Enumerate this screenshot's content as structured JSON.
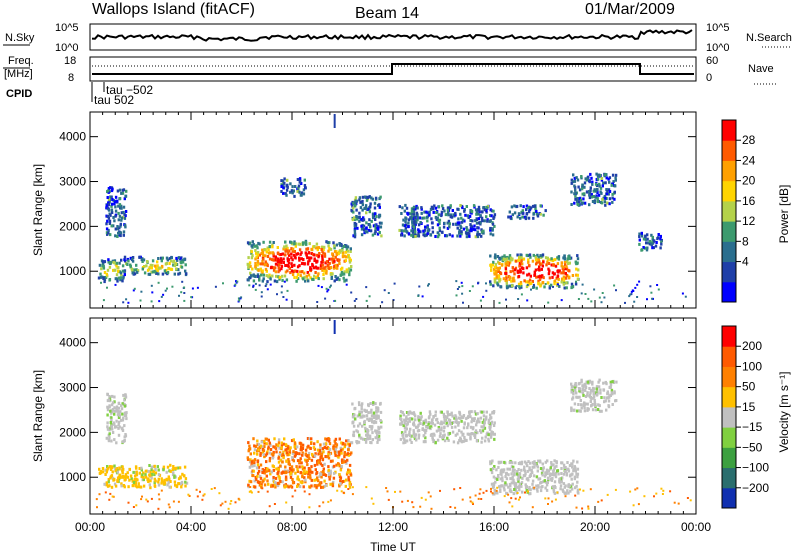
{
  "header": {
    "station": "Wallops Island (fitACF)",
    "beam": "Beam 14",
    "date": "01/Mar/2009"
  },
  "summary_panels": {
    "nsky_label": "N.Sky",
    "nsky_ticks": [
      "10^5",
      "10^0"
    ],
    "nsearch_label": "N.Search",
    "nsearch_ticks": [
      "10^5",
      "10^0"
    ],
    "freq_label": "Freq.",
    "freq_unit": "[MHz]",
    "freq_ticks": [
      "18",
      "8"
    ],
    "nave_label": "Nave",
    "nave_ticks": [
      "60",
      "0"
    ],
    "cpid_label": "CPID",
    "cpid_annotations": [
      "tau −502",
      "tau 502"
    ]
  },
  "chart_data": [
    {
      "type": "heatmap",
      "title": "",
      "ylabel": "Slant Range [km]",
      "xlabel": "",
      "x_range_hours": [
        0,
        24
      ],
      "ylim": [
        180,
        4550
      ],
      "yticks": [
        "4000",
        "3000",
        "2000",
        "1000"
      ],
      "colorbar": {
        "label": "Power [dB]",
        "ticks": [
          "28",
          "24",
          "20",
          "16",
          "12",
          "8",
          "4"
        ],
        "colors": [
          "#0000ff",
          "#1f3fa8",
          "#2a6e8e",
          "#3c9a6e",
          "#b4d24a",
          "#ffd400",
          "#ffa000",
          "#ff5a00",
          "#ff0000"
        ]
      },
      "regions": [
        {
          "t": [
            0.6,
            1.4
          ],
          "r": [
            1800,
            2900
          ],
          "level": "low"
        },
        {
          "t": [
            0.3,
            1.3
          ],
          "r": [
            800,
            1300
          ],
          "level": "mid"
        },
        {
          "t": [
            1.3,
            3.8
          ],
          "r": [
            950,
            1350
          ],
          "level": "mid"
        },
        {
          "t": [
            6.2,
            10.3
          ],
          "r": [
            800,
            1700
          ],
          "level": "high"
        },
        {
          "t": [
            7.5,
            8.5
          ],
          "r": [
            2700,
            3100
          ],
          "level": "low"
        },
        {
          "t": [
            10.3,
            11.5
          ],
          "r": [
            1800,
            2700
          ],
          "level": "low"
        },
        {
          "t": [
            12.2,
            16.0
          ],
          "r": [
            1800,
            2500
          ],
          "level": "low"
        },
        {
          "t": [
            15.8,
            19.3
          ],
          "r": [
            650,
            1400
          ],
          "level": "high"
        },
        {
          "t": [
            16.5,
            18.0
          ],
          "r": [
            2200,
            2500
          ],
          "level": "low"
        },
        {
          "t": [
            19.0,
            20.8
          ],
          "r": [
            2500,
            3200
          ],
          "level": "low"
        },
        {
          "t": [
            21.7,
            22.6
          ],
          "r": [
            1500,
            1900
          ],
          "level": "low"
        }
      ]
    },
    {
      "type": "heatmap",
      "title": "",
      "ylabel": "Slant Range [km]",
      "xlabel": "Time UT",
      "x_range_hours": [
        0,
        24
      ],
      "ylim": [
        180,
        4550
      ],
      "yticks": [
        "4000",
        "3000",
        "2000",
        "1000"
      ],
      "xticks": [
        "00:00",
        "04:00",
        "08:00",
        "12:00",
        "16:00",
        "20:00",
        "00:00"
      ],
      "colorbar": {
        "label": "Velocity [m s⁻¹]",
        "ticks": [
          "200",
          "100",
          "50",
          "15",
          "−15",
          "−50",
          "−100",
          "−200"
        ],
        "colors": [
          "#1030b0",
          "#2a6e6e",
          "#3ca040",
          "#80d040",
          "#c0c0c0",
          "#ffc000",
          "#ff8000",
          "#ff5a00",
          "#ff0000"
        ]
      },
      "regions": [
        {
          "t": [
            0.6,
            1.4
          ],
          "r": [
            1800,
            2900
          ],
          "level": "grey"
        },
        {
          "t": [
            0.3,
            3.8
          ],
          "r": [
            800,
            1300
          ],
          "level": "orange"
        },
        {
          "t": [
            6.2,
            10.3
          ],
          "r": [
            800,
            1900
          ],
          "level": "red"
        },
        {
          "t": [
            10.3,
            11.5
          ],
          "r": [
            1800,
            2700
          ],
          "level": "grey"
        },
        {
          "t": [
            12.2,
            16.0
          ],
          "r": [
            1800,
            2500
          ],
          "level": "grey"
        },
        {
          "t": [
            15.8,
            19.3
          ],
          "r": [
            650,
            1400
          ],
          "level": "grey"
        },
        {
          "t": [
            19.0,
            20.8
          ],
          "r": [
            2500,
            3200
          ],
          "level": "grey"
        }
      ]
    }
  ]
}
